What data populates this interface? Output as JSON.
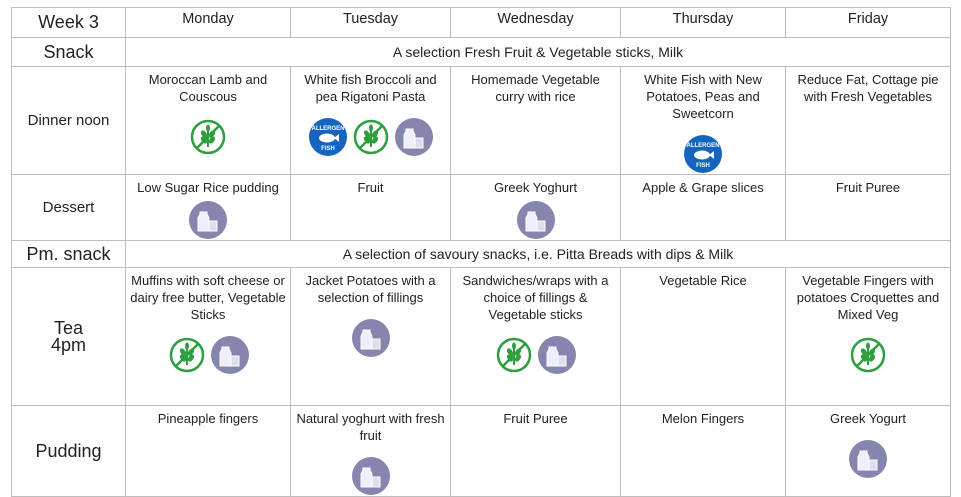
{
  "header": {
    "week": "Week 3",
    "days": [
      "Monday",
      "Tuesday",
      "Wednesday",
      "Thursday",
      "Friday"
    ]
  },
  "rows": [
    {
      "label": "Snack",
      "span": "A selection Fresh Fruit & Vegetable sticks, Milk"
    },
    {
      "label": "Dinner noon",
      "cells": [
        {
          "text": "Moroccan Lamb and Couscous",
          "icons": [
            "gluten-free"
          ]
        },
        {
          "text": "White fish Broccoli and pea Rigatoni Pasta",
          "icons": [
            "allergen-fish",
            "gluten-free",
            "milk"
          ]
        },
        {
          "text": "Homemade Vegetable curry with rice",
          "icons": []
        },
        {
          "text": "White Fish with New Potatoes, Peas and Sweetcorn",
          "icons": [
            "allergen-fish"
          ]
        },
        {
          "text": "Reduce Fat, Cottage pie with Fresh Vegetables",
          "icons": []
        }
      ]
    },
    {
      "label": "Dessert",
      "cells": [
        {
          "text": "Low Sugar Rice pudding",
          "icons": [
            "milk"
          ]
        },
        {
          "text": "Fruit",
          "icons": []
        },
        {
          "text": "Greek Yoghurt",
          "icons": [
            "milk"
          ]
        },
        {
          "text": "Apple & Grape slices",
          "icons": []
        },
        {
          "text": "Fruit Puree",
          "icons": []
        }
      ]
    },
    {
      "label": "Pm. snack",
      "span": "A selection of savoury snacks, i.e. Pitta Breads  with dips & Milk"
    },
    {
      "label": "Tea\n4pm",
      "cells": [
        {
          "text": "Muffins with soft cheese or dairy free butter, Vegetable Sticks",
          "icons": [
            "gluten-free",
            "milk"
          ]
        },
        {
          "text": "Jacket Potatoes with a selection of fillings",
          "icons": [
            "milk"
          ]
        },
        {
          "text": "Sandwiches/wraps with a choice of fillings & Vegetable sticks",
          "icons": [
            "gluten-free",
            "milk"
          ]
        },
        {
          "text": "Vegetable Rice",
          "icons": []
        },
        {
          "text": "Vegetable Fingers with potatoes Croquettes and Mixed Veg",
          "icons": [
            "gluten-free"
          ]
        }
      ]
    },
    {
      "label": "Pudding",
      "cells": [
        {
          "text": "Pineapple fingers",
          "icons": []
        },
        {
          "text": "Natural yoghurt with fresh fruit",
          "icons": [
            "milk"
          ]
        },
        {
          "text": "Fruit Puree",
          "icons": []
        },
        {
          "text": "Melon Fingers",
          "icons": []
        },
        {
          "text": "Greek Yogurt",
          "icons": [
            "milk"
          ]
        }
      ]
    }
  ],
  "icon_text": {
    "allergen": "ALLERGEN",
    "fish": "FISH"
  },
  "colors": {
    "fish": "#1565c0",
    "gluten_free": "#2e9e3e",
    "milk": "#8585ad",
    "border": "#bdbdbd"
  }
}
